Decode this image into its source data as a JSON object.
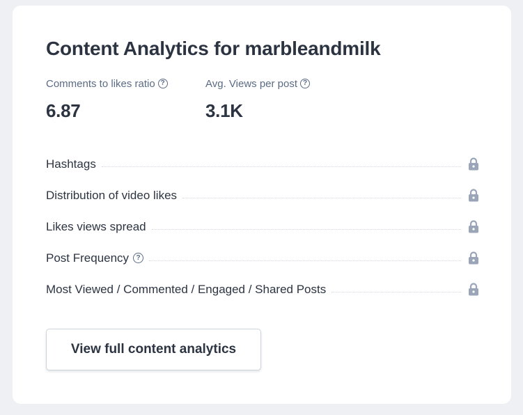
{
  "card": {
    "title": "Content Analytics for marbleandmilk"
  },
  "metrics": [
    {
      "label": "Comments to likes ratio",
      "value": "6.87",
      "help_icon": "question-circle-icon"
    },
    {
      "label": "Avg. Views per post",
      "value": "3.1K",
      "help_icon": "question-circle-icon"
    }
  ],
  "locked_items": [
    {
      "label": "Hashtags",
      "has_help": false,
      "icon": "lock-icon"
    },
    {
      "label": "Distribution of video likes",
      "has_help": false,
      "icon": "lock-icon"
    },
    {
      "label": "Likes views spread",
      "has_help": false,
      "icon": "lock-icon"
    },
    {
      "label": "Post Frequency",
      "has_help": true,
      "icon": "lock-icon"
    },
    {
      "label": "Most Viewed / Commented / Engaged / Shared Posts",
      "has_help": false,
      "icon": "lock-icon"
    }
  ],
  "help_glyph": "?",
  "cta": {
    "label": "View full content analytics"
  },
  "colors": {
    "page_background": "#eef0f4",
    "card_background": "#ffffff",
    "text_primary": "#2c3442",
    "text_secondary": "#5b6b84",
    "lock_icon": "#9aa6b8",
    "dotted_leader": "#d3d8e0"
  }
}
